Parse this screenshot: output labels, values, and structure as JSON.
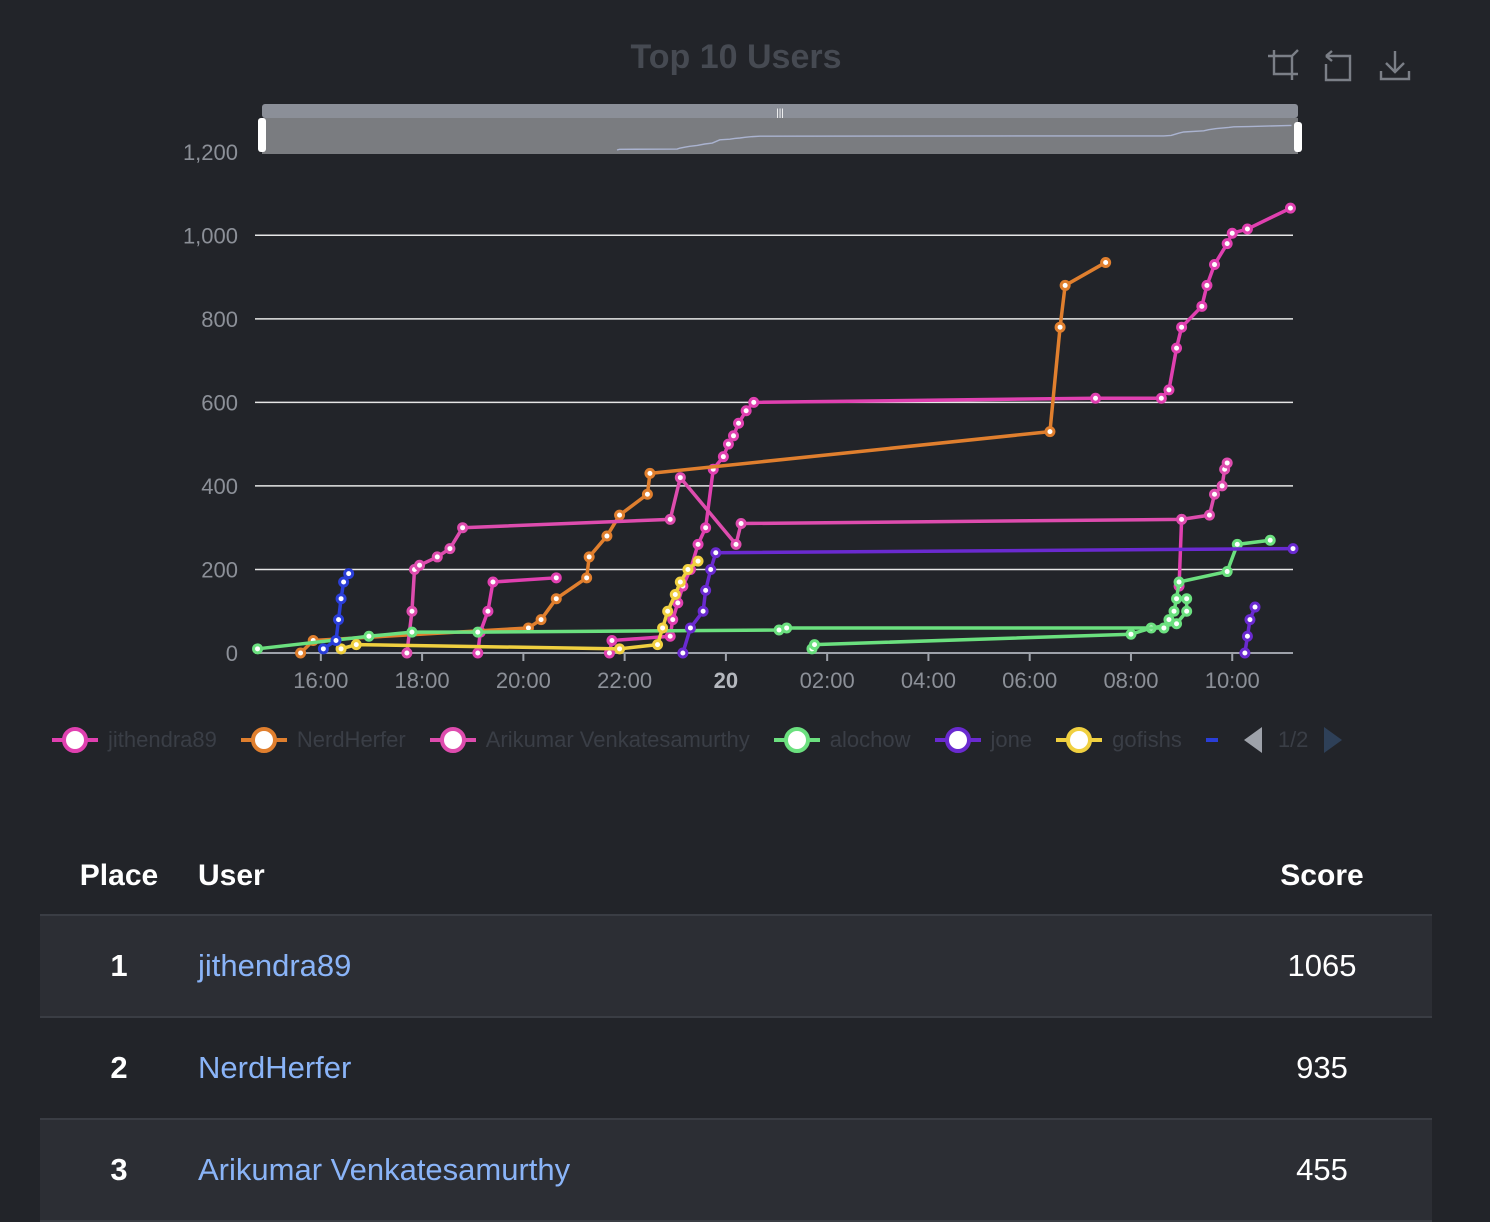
{
  "chart_data": {
    "type": "line",
    "title": "Top 10 Users",
    "xlabel": "",
    "ylabel": "",
    "ylim": [
      0,
      1300
    ],
    "xlim_hours": [
      14.7,
      35.2
    ],
    "y_ticks": [
      0,
      200,
      400,
      600,
      800,
      1000,
      1200
    ],
    "x_ticks": [
      {
        "h": 16,
        "label": "16:00",
        "bold": false
      },
      {
        "h": 18,
        "label": "18:00",
        "bold": false
      },
      {
        "h": 20,
        "label": "20:00",
        "bold": false
      },
      {
        "h": 22,
        "label": "22:00",
        "bold": false
      },
      {
        "h": 24,
        "label": "20",
        "bold": true
      },
      {
        "h": 26,
        "label": "02:00",
        "bold": false
      },
      {
        "h": 28,
        "label": "04:00",
        "bold": false
      },
      {
        "h": 30,
        "label": "06:00",
        "bold": false
      },
      {
        "h": 32,
        "label": "08:00",
        "bold": false
      },
      {
        "h": 34,
        "label": "10:00",
        "bold": false
      }
    ],
    "grid": true,
    "legend_position": "bottom",
    "series": [
      {
        "name": "jithendra89",
        "color": "#e040b0",
        "points": [
          [
            21.7,
            0
          ],
          [
            21.75,
            30
          ],
          [
            22.9,
            40
          ],
          [
            22.95,
            80
          ],
          [
            23.05,
            120
          ],
          [
            23.15,
            160
          ],
          [
            23.3,
            200
          ],
          [
            23.45,
            260
          ],
          [
            23.6,
            300
          ],
          [
            23.75,
            440
          ],
          [
            23.95,
            470
          ],
          [
            24.05,
            500
          ],
          [
            24.15,
            520
          ],
          [
            24.25,
            550
          ],
          [
            24.4,
            580
          ],
          [
            24.55,
            600
          ],
          [
            31.3,
            610
          ],
          [
            32.6,
            610
          ],
          [
            32.75,
            630
          ],
          [
            32.9,
            730
          ],
          [
            33.0,
            780
          ],
          [
            33.4,
            830
          ],
          [
            33.5,
            880
          ],
          [
            33.65,
            930
          ],
          [
            33.9,
            980
          ],
          [
            34.0,
            1005
          ],
          [
            34.3,
            1015
          ],
          [
            35.15,
            1065
          ]
        ]
      },
      {
        "name": "NerdHerfer",
        "color": "#e07f2e",
        "points": [
          [
            15.6,
            0
          ],
          [
            15.85,
            30
          ],
          [
            20.1,
            60
          ],
          [
            20.35,
            80
          ],
          [
            20.65,
            130
          ],
          [
            21.25,
            180
          ],
          [
            21.3,
            230
          ],
          [
            21.65,
            280
          ],
          [
            21.9,
            330
          ],
          [
            22.45,
            380
          ],
          [
            22.5,
            430
          ],
          [
            30.4,
            530
          ],
          [
            30.6,
            780
          ],
          [
            30.7,
            880
          ],
          [
            31.5,
            935
          ]
        ]
      },
      {
        "name": "Arikumar Venkatesamurthy",
        "color": "#de4cae",
        "points": [
          [
            17.7,
            0
          ],
          [
            17.8,
            100
          ],
          [
            17.85,
            200
          ],
          [
            17.95,
            210
          ],
          [
            18.3,
            230
          ],
          [
            18.55,
            250
          ],
          [
            18.8,
            300
          ],
          [
            22.9,
            320
          ],
          [
            23.1,
            420
          ],
          [
            24.2,
            260
          ],
          [
            24.3,
            310
          ],
          [
            33.0,
            320
          ],
          [
            33.55,
            330
          ],
          [
            33.65,
            380
          ],
          [
            33.8,
            400
          ],
          [
            33.85,
            440
          ],
          [
            33.9,
            455
          ]
        ]
      },
      {
        "name": "alochow",
        "color": "#6be07f",
        "points": [
          [
            14.75,
            10
          ],
          [
            16.95,
            40
          ],
          [
            17.8,
            50
          ],
          [
            19.1,
            50
          ],
          [
            25.05,
            55
          ],
          [
            25.2,
            60
          ],
          [
            32.65,
            60
          ],
          [
            32.75,
            80
          ],
          [
            32.85,
            100
          ],
          [
            32.9,
            130
          ],
          [
            32.95,
            170
          ],
          [
            33.9,
            195
          ],
          [
            34.1,
            260
          ],
          [
            34.75,
            270
          ]
        ]
      },
      {
        "name": "jone",
        "color": "#6a2ad0",
        "points": [
          [
            23.15,
            0
          ],
          [
            23.3,
            60
          ],
          [
            23.55,
            100
          ],
          [
            23.6,
            150
          ],
          [
            23.7,
            200
          ],
          [
            23.8,
            240
          ],
          [
            35.2,
            250
          ]
        ]
      },
      {
        "name": "gofishs",
        "color": "#f0d040",
        "points": [
          [
            16.4,
            10
          ],
          [
            16.7,
            20
          ],
          [
            21.9,
            10
          ],
          [
            22.65,
            20
          ],
          [
            22.75,
            60
          ],
          [
            22.85,
            100
          ],
          [
            23.0,
            140
          ],
          [
            23.1,
            170
          ],
          [
            23.25,
            200
          ],
          [
            23.45,
            220
          ]
        ]
      },
      {
        "name": "",
        "color": "#2a3ed8",
        "points": [
          [
            16.05,
            10
          ],
          [
            16.3,
            30
          ],
          [
            16.35,
            80
          ],
          [
            16.4,
            130
          ],
          [
            16.45,
            170
          ],
          [
            16.55,
            190
          ]
        ]
      }
    ],
    "extra_lines": [
      {
        "color": "#e040b0",
        "points": [
          [
            19.1,
            0
          ],
          [
            19.15,
            50
          ],
          [
            19.3,
            100
          ],
          [
            19.4,
            170
          ],
          [
            20.65,
            180
          ]
        ]
      },
      {
        "color": "#e040b0",
        "points": [
          [
            32.95,
            160
          ],
          [
            33.0,
            320
          ]
        ]
      },
      {
        "color": "#6be07f",
        "points": [
          [
            25.7,
            10
          ],
          [
            25.75,
            20
          ],
          [
            32.0,
            45
          ],
          [
            32.4,
            60
          ],
          [
            32.9,
            70
          ],
          [
            33.1,
            100
          ],
          [
            33.1,
            130
          ]
        ]
      },
      {
        "color": "#6a2ad0",
        "points": [
          [
            34.25,
            0
          ],
          [
            34.3,
            40
          ],
          [
            34.35,
            80
          ],
          [
            34.45,
            110
          ]
        ]
      }
    ],
    "zoom_slider": {
      "range": [
        0,
        100
      ]
    },
    "legend_page": "1/2"
  },
  "legend": [
    {
      "name": "jithendra89",
      "color": "#e040b0"
    },
    {
      "name": "NerdHerfer",
      "color": "#e07f2e"
    },
    {
      "name": "Arikumar Venkatesamurthy",
      "color": "#de4cae"
    },
    {
      "name": "alochow",
      "color": "#6be07f"
    },
    {
      "name": "jone",
      "color": "#6a2ad0"
    },
    {
      "name": "gofishs",
      "color": "#f0d040"
    }
  ],
  "legend_partial": {
    "color": "#2a3ed8"
  },
  "pager": {
    "text": "1/2",
    "prev_icon": "triangle-left-icon",
    "next_icon": "triangle-right-icon"
  },
  "toolbox": {
    "icons": [
      "data-zoom-icon",
      "zoom-reset-icon",
      "download-icon"
    ]
  },
  "table": {
    "headers": {
      "place": "Place",
      "user": "User",
      "score": "Score"
    },
    "rows": [
      {
        "place": "1",
        "user": "jithendra89",
        "score": "1065"
      },
      {
        "place": "2",
        "user": "NerdHerfer",
        "score": "935"
      },
      {
        "place": "3",
        "user": "Arikumar Venkatesamurthy",
        "score": "455"
      }
    ]
  }
}
